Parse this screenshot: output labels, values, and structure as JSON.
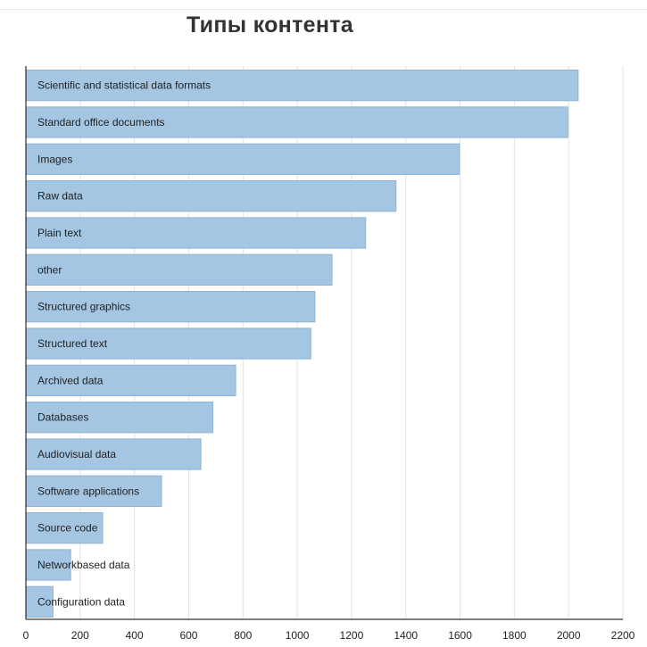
{
  "chart_data": {
    "type": "bar",
    "orientation": "horizontal",
    "title": "Типы контента",
    "xlabel": "",
    "ylabel": "",
    "categories": [
      "Scientific and statistical data formats",
      "Standard office documents",
      "Images",
      "Raw data",
      "Plain text",
      "other",
      "Structured graphics",
      "Structured text",
      "Archived data",
      "Databases",
      "Audiovisual data",
      "Software applications",
      "Source code",
      "Networkbased data",
      "Configuration data"
    ],
    "values": [
      2035,
      1997,
      1597,
      1364,
      1252,
      1128,
      1065,
      1050,
      773,
      689,
      645,
      500,
      283,
      165,
      100
    ],
    "xlim": [
      0,
      2200
    ],
    "xticks": [
      0,
      200,
      400,
      600,
      800,
      1000,
      1200,
      1400,
      1600,
      1800,
      2000,
      2200
    ],
    "grid": true,
    "legend": "none",
    "colors": {
      "bar_fill": "#a4c6e2",
      "bar_stroke": "#8fb4d4"
    }
  }
}
